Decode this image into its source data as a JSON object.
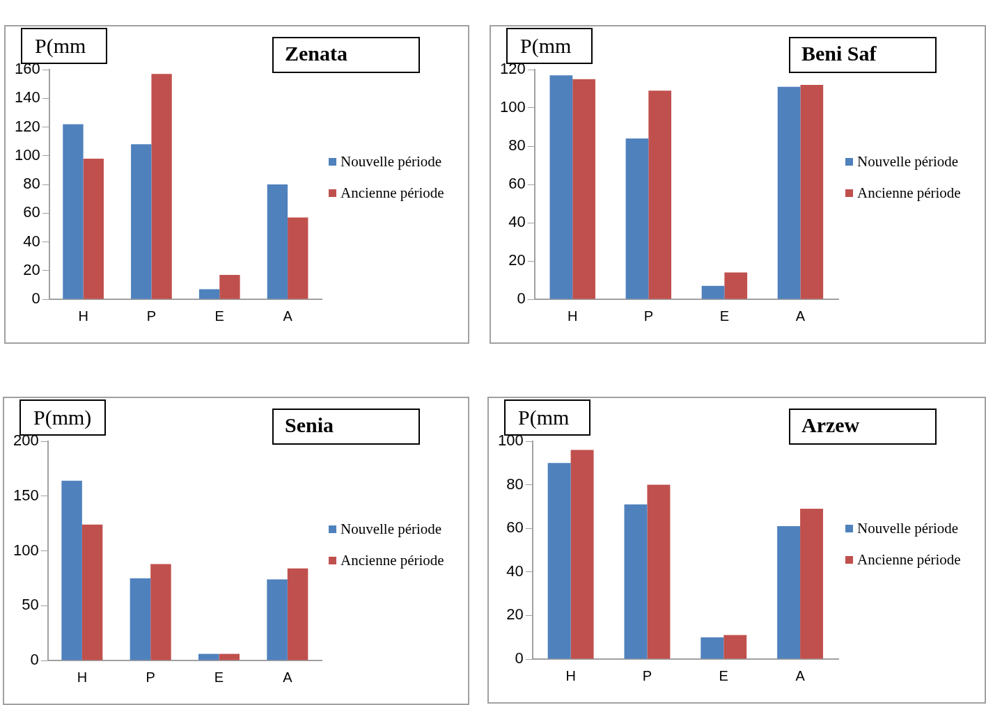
{
  "chart_data": [
    {
      "type": "bar",
      "title": "Zenata",
      "ylabel": "P(mm",
      "categories": [
        "H",
        "P",
        "E",
        "A"
      ],
      "series": [
        {
          "name": "Nouvelle période",
          "color": "#4f81bd",
          "values": [
            122,
            108,
            7,
            80
          ]
        },
        {
          "name": "Ancienne période",
          "color": "#c0504d",
          "values": [
            98,
            157,
            17,
            57
          ]
        }
      ],
      "ylim": [
        0,
        160
      ],
      "yticks": [
        0,
        20,
        40,
        60,
        80,
        100,
        120,
        140,
        160
      ],
      "grid": false,
      "legend": "right"
    },
    {
      "type": "bar",
      "title": "Beni Saf",
      "ylabel": "P(mm",
      "categories": [
        "H",
        "P",
        "E",
        "A"
      ],
      "series": [
        {
          "name": "Nouvelle période",
          "color": "#4f81bd",
          "values": [
            117,
            84,
            7,
            111
          ]
        },
        {
          "name": "Ancienne période",
          "color": "#c0504d",
          "values": [
            115,
            109,
            14,
            112
          ]
        }
      ],
      "ylim": [
        0,
        120
      ],
      "yticks": [
        0,
        20,
        40,
        60,
        80,
        100,
        120
      ],
      "grid": false,
      "legend": "right"
    },
    {
      "type": "bar",
      "title": "Senia",
      "ylabel": "P(mm)",
      "categories": [
        "H",
        "P",
        "E",
        "A"
      ],
      "series": [
        {
          "name": "Nouvelle période",
          "color": "#4f81bd",
          "values": [
            164,
            75,
            6,
            74
          ]
        },
        {
          "name": "Ancienne période",
          "color": "#c0504d",
          "values": [
            124,
            88,
            6,
            84
          ]
        }
      ],
      "ylim": [
        0,
        200
      ],
      "yticks": [
        0,
        50,
        100,
        150,
        200
      ],
      "grid": false,
      "legend": "right"
    },
    {
      "type": "bar",
      "title": "Arzew",
      "ylabel": "P(mm",
      "categories": [
        "H",
        "P",
        "E",
        "A"
      ],
      "series": [
        {
          "name": "Nouvelle période",
          "color": "#4f81bd",
          "values": [
            90,
            71,
            10,
            61
          ]
        },
        {
          "name": "Ancienne période",
          "color": "#c0504d",
          "values": [
            96,
            80,
            11,
            69
          ]
        }
      ],
      "ylim": [
        0,
        100
      ],
      "yticks": [
        0,
        20,
        40,
        60,
        80,
        100
      ],
      "grid": false,
      "legend": "right"
    }
  ]
}
